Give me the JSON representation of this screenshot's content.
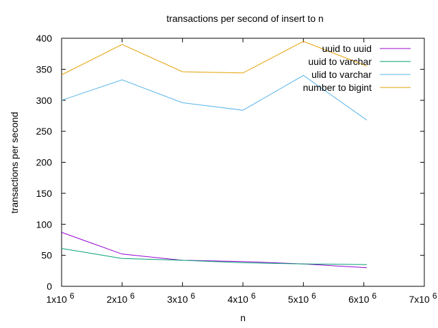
{
  "chart_data": {
    "type": "line",
    "title": "transactions per second of insert to n",
    "xlabel": "n",
    "ylabel": "transactions per second",
    "xlim": [
      1000000,
      7000000
    ],
    "ylim": [
      0,
      400
    ],
    "x_ticks": [
      {
        "value": 1000000,
        "base": "1x10",
        "exp": "6"
      },
      {
        "value": 2000000,
        "base": "2x10",
        "exp": "6"
      },
      {
        "value": 3000000,
        "base": "3x10",
        "exp": "6"
      },
      {
        "value": 4000000,
        "base": "4x10",
        "exp": "6"
      },
      {
        "value": 5000000,
        "base": "5x10",
        "exp": "6"
      },
      {
        "value": 6000000,
        "base": "6x10",
        "exp": "6"
      },
      {
        "value": 7000000,
        "base": "7x10",
        "exp": "6"
      }
    ],
    "y_ticks": [
      0,
      50,
      100,
      150,
      200,
      250,
      300,
      350,
      400
    ],
    "grid": false,
    "legend_position": "top-right",
    "x": [
      1000000,
      2000000,
      3000000,
      4000000,
      5000000,
      6050000
    ],
    "series": [
      {
        "name": "uuid to uuid",
        "color": "#9400d3",
        "values": [
          87,
          52,
          42,
          40,
          36,
          30
        ]
      },
      {
        "name": "uuid to varchar",
        "color": "#009e73",
        "values": [
          61,
          45,
          42,
          38,
          36,
          35
        ]
      },
      {
        "name": "ulid to varchar",
        "color": "#56b4e9",
        "values": [
          300,
          333,
          296,
          284,
          340,
          268
        ]
      },
      {
        "name": "number to bigint",
        "color": "#e69f00",
        "values": [
          341,
          390,
          346,
          344,
          395,
          355
        ]
      }
    ]
  }
}
